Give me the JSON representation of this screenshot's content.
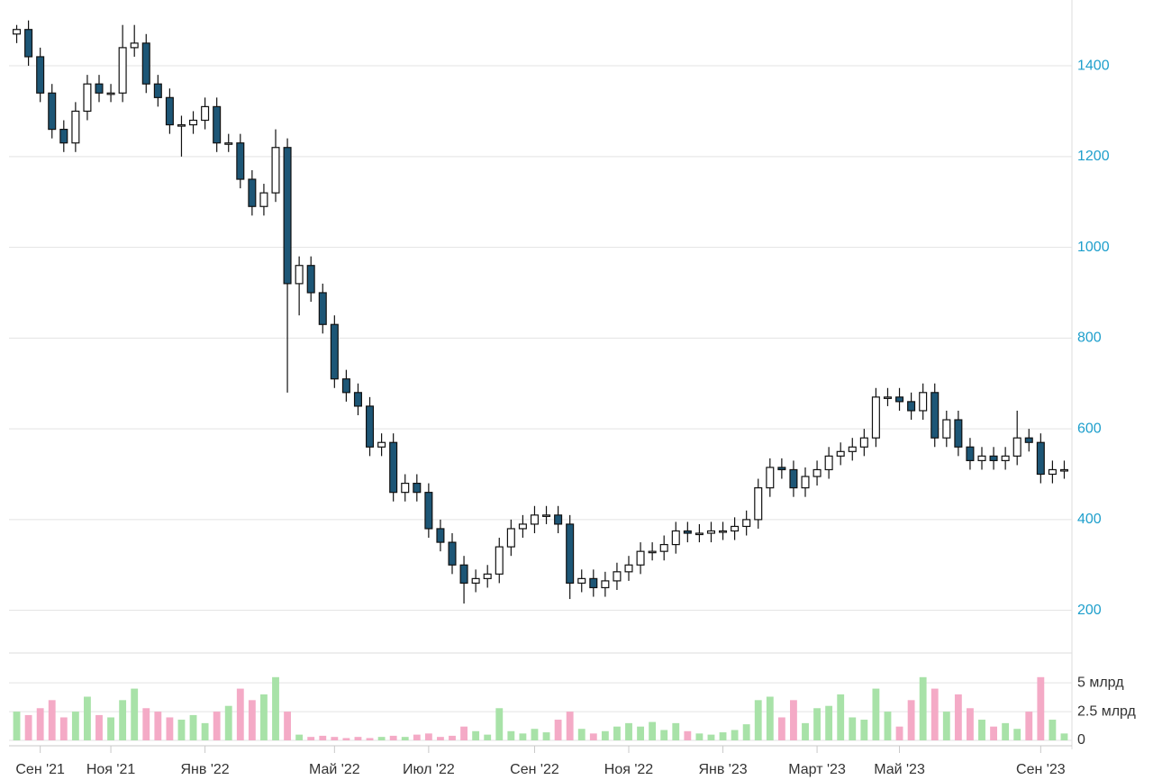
{
  "chart_data": {
    "type": "candlestick",
    "categories": [
      null,
      null,
      "Сен '21",
      null,
      null,
      null,
      null,
      null,
      "Ноя '21",
      null,
      null,
      null,
      null,
      null,
      null,
      null,
      "Янв '22",
      null,
      null,
      null,
      null,
      null,
      null,
      null,
      null,
      null,
      null,
      "Май '22",
      null,
      null,
      null,
      null,
      null,
      null,
      null,
      "Июл '22",
      null,
      null,
      null,
      null,
      null,
      null,
      null,
      null,
      "Сен '22",
      null,
      null,
      null,
      null,
      null,
      null,
      null,
      "Ноя '22",
      null,
      null,
      null,
      null,
      null,
      null,
      null,
      "Янв '23",
      null,
      null,
      null,
      null,
      null,
      null,
      null,
      "Март '23",
      null,
      null,
      null,
      null,
      null,
      null,
      "Май '23",
      null,
      null,
      null,
      null,
      null,
      null,
      null,
      null,
      null,
      null,
      null,
      "Сен '23",
      null,
      null
    ],
    "open": [
      1470,
      1480,
      1420,
      1340,
      1260,
      1230,
      1300,
      1360,
      1340,
      1340,
      1440,
      1450,
      1360,
      1330,
      1270,
      1270,
      1280,
      1310,
      1230,
      1230,
      1150,
      1090,
      1120,
      1220,
      920,
      960,
      900,
      830,
      710,
      680,
      650,
      560,
      570,
      460,
      480,
      460,
      380,
      350,
      300,
      260,
      270,
      280,
      340,
      380,
      390,
      410,
      410,
      390,
      260,
      270,
      250,
      265,
      285,
      300,
      330,
      330,
      345,
      375,
      370,
      370,
      375,
      375,
      385,
      400,
      470,
      515,
      510,
      470,
      495,
      510,
      540,
      550,
      560,
      580,
      670,
      670,
      660,
      640,
      680,
      580,
      620,
      560,
      530,
      540,
      530,
      540,
      580,
      570,
      500,
      510
    ],
    "high": [
      1490,
      1500,
      1440,
      1360,
      1280,
      1320,
      1380,
      1380,
      1360,
      1490,
      1490,
      1470,
      1380,
      1350,
      1290,
      1300,
      1330,
      1330,
      1250,
      1250,
      1170,
      1140,
      1260,
      1240,
      980,
      980,
      920,
      850,
      730,
      700,
      670,
      590,
      590,
      500,
      500,
      480,
      400,
      370,
      320,
      290,
      300,
      360,
      400,
      410,
      430,
      430,
      430,
      410,
      290,
      290,
      285,
      305,
      320,
      350,
      350,
      365,
      395,
      395,
      390,
      395,
      395,
      405,
      420,
      490,
      535,
      535,
      530,
      515,
      530,
      560,
      570,
      580,
      600,
      690,
      690,
      690,
      680,
      700,
      700,
      640,
      640,
      580,
      560,
      560,
      560,
      640,
      600,
      590,
      530,
      530
    ],
    "low": [
      1450,
      1400,
      1320,
      1240,
      1210,
      1210,
      1280,
      1320,
      1320,
      1320,
      1420,
      1340,
      1310,
      1250,
      1200,
      1250,
      1260,
      1210,
      1210,
      1130,
      1070,
      1070,
      1100,
      680,
      850,
      880,
      810,
      690,
      660,
      630,
      540,
      540,
      440,
      440,
      440,
      360,
      330,
      280,
      215,
      240,
      250,
      260,
      320,
      360,
      370,
      390,
      370,
      225,
      240,
      230,
      230,
      245,
      265,
      280,
      310,
      310,
      325,
      350,
      350,
      350,
      355,
      355,
      365,
      380,
      450,
      490,
      450,
      450,
      475,
      490,
      520,
      530,
      540,
      560,
      650,
      640,
      620,
      620,
      560,
      560,
      540,
      510,
      510,
      510,
      510,
      520,
      550,
      480,
      480,
      490
    ],
    "close": [
      1480,
      1420,
      1340,
      1260,
      1230,
      1300,
      1360,
      1340,
      1340,
      1440,
      1450,
      1360,
      1330,
      1270,
      1270,
      1280,
      1310,
      1230,
      1230,
      1150,
      1090,
      1120,
      1220,
      920,
      960,
      900,
      830,
      710,
      680,
      650,
      560,
      570,
      460,
      480,
      460,
      380,
      350,
      300,
      260,
      270,
      280,
      340,
      380,
      390,
      410,
      410,
      390,
      260,
      270,
      250,
      265,
      285,
      300,
      330,
      330,
      345,
      375,
      370,
      370,
      375,
      375,
      385,
      400,
      470,
      515,
      510,
      470,
      495,
      510,
      540,
      550,
      560,
      580,
      670,
      670,
      660,
      640,
      680,
      580,
      620,
      560,
      530,
      540,
      530,
      540,
      580,
      570,
      500,
      510,
      510
    ],
    "ylim": [
      110,
      1545
    ],
    "yticks": [
      200,
      400,
      600,
      800,
      1000,
      1200,
      1400
    ],
    "up_color": "#ffffff",
    "down_color": "#1d5676",
    "grid": true,
    "volume": {
      "values": [
        2.5,
        2.2,
        2.8,
        3.5,
        2.0,
        2.5,
        3.8,
        2.2,
        2.0,
        3.5,
        4.5,
        2.8,
        2.5,
        2.0,
        1.8,
        2.2,
        1.5,
        2.5,
        3.0,
        4.5,
        3.5,
        4.0,
        5.5,
        2.5,
        0.5,
        0.3,
        0.4,
        0.3,
        0.2,
        0.3,
        0.2,
        0.3,
        0.4,
        0.3,
        0.5,
        0.6,
        0.3,
        0.4,
        1.2,
        0.8,
        0.5,
        2.8,
        0.8,
        0.6,
        1.0,
        0.7,
        1.8,
        2.5,
        1.0,
        0.6,
        0.8,
        1.2,
        1.5,
        1.2,
        1.6,
        0.9,
        1.5,
        0.8,
        0.6,
        0.5,
        0.7,
        0.9,
        1.4,
        3.5,
        3.8,
        2.0,
        3.5,
        1.5,
        2.8,
        3.0,
        4.0,
        2.0,
        1.8,
        4.5,
        2.5,
        1.2,
        3.5,
        5.5,
        4.5,
        2.5,
        4.0,
        2.8,
        1.8,
        1.2,
        1.5,
        1.0,
        2.5,
        5.5,
        1.8,
        0.6
      ],
      "ylim": [
        0,
        7.6
      ],
      "yticks": [
        0,
        {
          "value": 2.5,
          "label": "2.5 млрд"
        },
        {
          "value": 5,
          "label": "5 млрд"
        }
      ],
      "up_color": "#a8e2a8",
      "down_color": "#f4aac6"
    }
  }
}
